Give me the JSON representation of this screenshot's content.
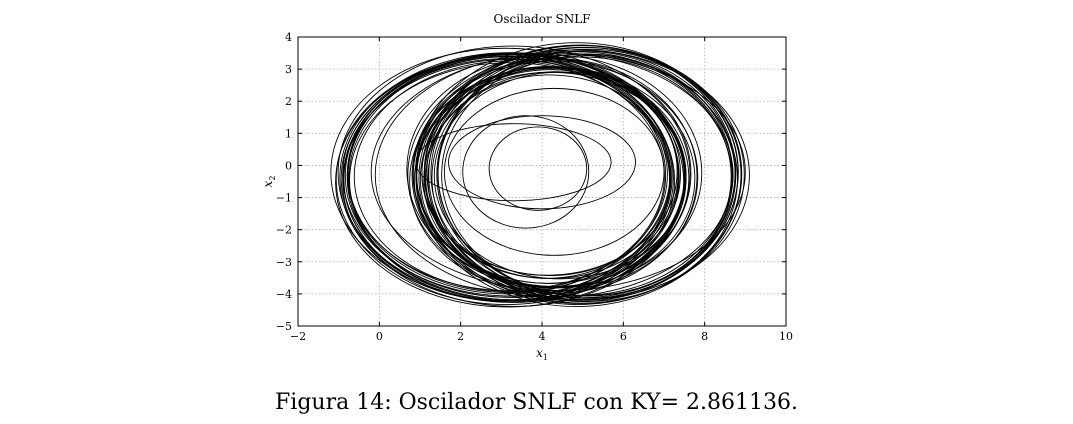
{
  "chart_data": {
    "type": "line",
    "title": "Oscilador SNLF",
    "xlabel": "x",
    "xlabel_sub": "1",
    "ylabel": "x",
    "ylabel_sub": "2",
    "xlim": [
      -2,
      10
    ],
    "ylim": [
      -5,
      4
    ],
    "xticks": [
      -2,
      0,
      2,
      4,
      6,
      8,
      10
    ],
    "yticks": [
      -5,
      -4,
      -3,
      -2,
      -1,
      0,
      1,
      2,
      3,
      4
    ],
    "xtick_labels": [
      "−2",
      "0",
      "2",
      "4",
      "6",
      "8",
      "10"
    ],
    "ytick_labels": [
      "−5",
      "−4",
      "−3",
      "−2",
      "−1",
      "0",
      "1",
      "2",
      "3",
      "4"
    ],
    "grid": true,
    "line_color": "#000000",
    "grid_color": "#b0b0b0",
    "orbits": [
      {
        "cx": 3.9,
        "cy": -0.1,
        "rx": 1.2,
        "ry": 1.3
      },
      {
        "cx": 3.6,
        "cy": -0.2,
        "rx": 1.55,
        "ry": 1.75
      },
      {
        "cx": 4.0,
        "cy": 0.1,
        "rx": 2.3,
        "ry": 1.45
      },
      {
        "cx": 3.3,
        "cy": 0.1,
        "rx": 2.4,
        "ry": 1.2
      },
      {
        "cx": 4.3,
        "cy": -0.2,
        "rx": 2.7,
        "ry": 2.6
      },
      {
        "cx": 4.9,
        "cy": -0.3,
        "rx": 4.2,
        "ry": 3.9
      },
      {
        "cx": 4.3,
        "cy": -0.3,
        "rx": 4.4,
        "ry": 3.8
      },
      {
        "cx": 4.4,
        "cy": -0.2,
        "rx": 4.6,
        "ry": 3.7
      }
    ],
    "bands": [
      {
        "cx": 3.2,
        "cy": -0.35,
        "rx": 4.1,
        "ry": 3.8,
        "n": 18,
        "jitter": 0.12
      },
      {
        "cx": 4.3,
        "cy": -0.3,
        "rx": 3.3,
        "ry": 3.4,
        "n": 16,
        "jitter": 0.15
      },
      {
        "cx": 5.0,
        "cy": -0.3,
        "rx": 3.8,
        "ry": 3.9,
        "n": 14,
        "jitter": 0.12
      }
    ]
  },
  "caption": "Figura 14: Oscilador SNLF con KY= 2.861136."
}
